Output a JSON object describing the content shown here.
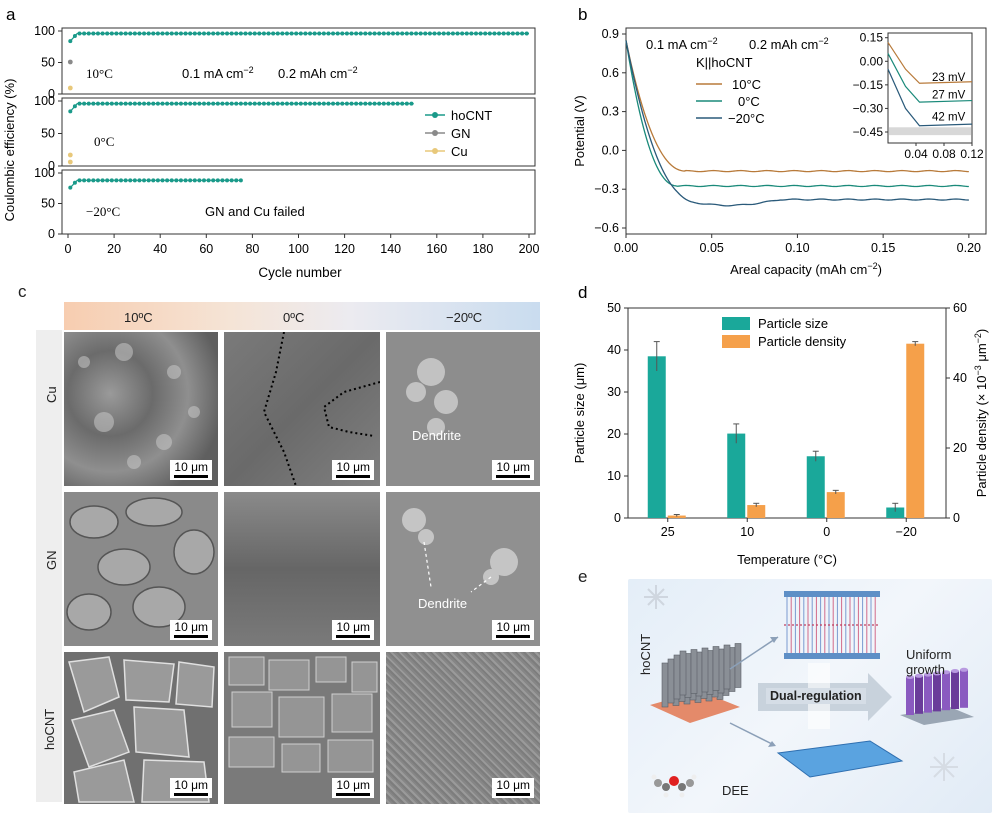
{
  "panel_a": {
    "letter": "a",
    "ylabel": "Coulombic efficiency (%)",
    "xlabel": "Cycle number",
    "xticks": [
      "0",
      "20",
      "40",
      "60",
      "80",
      "100",
      "120",
      "140",
      "160",
      "180",
      "200"
    ],
    "yticks": [
      "0",
      "50",
      "100"
    ],
    "sub1": {
      "temp": "10°C",
      "cond1": "0.1 mA cm",
      "cond1_exp": "−2",
      "cond2": "0.2 mAh cm",
      "cond2_exp": "−2"
    },
    "sub2": {
      "temp": "0°C"
    },
    "sub3": {
      "temp": "−20°C",
      "note": "GN and Cu failed"
    },
    "legend": [
      "hoCNT",
      "GN",
      "Cu"
    ],
    "colors": {
      "hoCNT": "#1a9a8a",
      "GN": "#8a8a8a",
      "Cu": "#e8c87a"
    }
  },
  "panel_b": {
    "letter": "b",
    "ylabel": "Potential (V)",
    "xlabel": "Areal capacity (mAh cm",
    "xlabel_exp": "−2",
    "xlabel_end": ")",
    "cond1": "0.1 mA cm",
    "cond1_exp": "−2",
    "cond2": "0.2 mAh cm",
    "cond2_exp": "−2",
    "cell": "K||hoCNT",
    "legend": [
      "10°C",
      "0°C",
      "−20°C"
    ],
    "colors": [
      "#b87a3a",
      "#1a8a7a",
      "#2a5a7a"
    ],
    "xticks": [
      "0.00",
      "0.05",
      "0.10",
      "0.15",
      "0.20"
    ],
    "yticks": [
      "0.9",
      "0.6",
      "0.3",
      "0.0",
      "−0.3",
      "−0.6"
    ],
    "inset": {
      "yticks": [
        "0.15",
        "0.00",
        "−0.15",
        "−0.30",
        "−0.45"
      ],
      "xticks": [
        "0.04",
        "0.08",
        "0.12"
      ],
      "labels": [
        "23 mV",
        "27 mV",
        "42 mV"
      ]
    }
  },
  "panel_c": {
    "letter": "c",
    "temps": [
      "10ºC",
      "0ºC",
      "−20ºC"
    ],
    "rows": [
      "Cu",
      "GN",
      "hoCNT"
    ],
    "scale": "10 μm",
    "dendrite1": "Dendrite",
    "dendrite2": "Dendrite"
  },
  "panel_e": {
    "letter": "e",
    "hocnt": "hoCNT",
    "dual": "Dual-regulation",
    "uniform": "Uniform\ngrowth",
    "dee": "DEE"
  },
  "chart_data": [
    {
      "type": "bar",
      "panel": "d",
      "categories": [
        "25",
        "10",
        "0",
        "−20"
      ],
      "series": [
        {
          "name": "Particle size",
          "values": [
            38.5,
            20.1,
            14.7,
            2.5
          ],
          "errors": [
            3.5,
            2.3,
            1.2,
            1.0
          ],
          "axis": "left",
          "color": "#1aa89a"
        },
        {
          "name": "Particle density",
          "values": [
            0.7,
            3.7,
            7.4,
            49.8
          ],
          "errors": [
            0.3,
            0.5,
            0.5,
            0.6
          ],
          "axis": "right",
          "color": "#f5a04a"
        }
      ],
      "xlabel": "Temperature (°C)",
      "ylabel": "Particle size (μm)",
      "ylabel_right": "Particle density (× 10",
      "ylabel_right_exp": "−3",
      "ylabel_right_unit": " μm",
      "ylabel_right_exp2": "−2",
      "ylabel_right_end": ")",
      "ylim": [
        0,
        50
      ],
      "ylim_right": [
        0,
        60
      ],
      "yticks": [
        "0",
        "10",
        "20",
        "30",
        "40",
        "50"
      ],
      "yticks_right": [
        "0",
        "20",
        "40",
        "60"
      ],
      "legend_position": "top-center"
    }
  ]
}
